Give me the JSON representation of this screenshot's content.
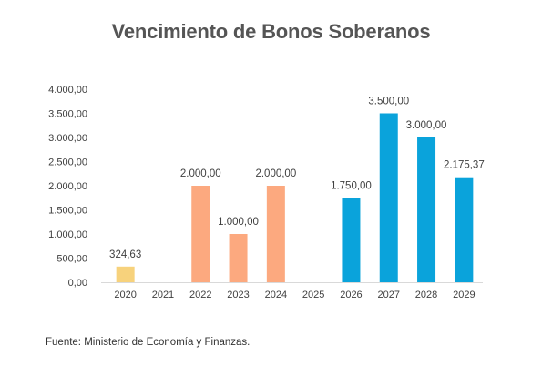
{
  "chart_data": {
    "type": "bar",
    "title": "Vencimiento de Bonos Soberanos",
    "categories": [
      "2020",
      "2021",
      "2022",
      "2023",
      "2024",
      "2025",
      "2026",
      "2027",
      "2028",
      "2029"
    ],
    "values": [
      324.63,
      0,
      2000,
      1000,
      2000,
      0,
      1750,
      3500,
      3000,
      2175.37
    ],
    "value_labels": [
      "324,63",
      "",
      "2.000,00",
      "1.000,00",
      "2.000,00",
      "",
      "1.750,00",
      "3.500,00",
      "3.000,00",
      "2.175,37"
    ],
    "bar_colors": [
      "#f7d27c",
      "#f7d27c",
      "#fca97f",
      "#fca97f",
      "#fca97f",
      "#0aa3db",
      "#0aa3db",
      "#0aa3db",
      "#0aa3db",
      "#0aa3db"
    ],
    "ylim": [
      0,
      4000
    ],
    "yticks": [
      0,
      500,
      1000,
      1500,
      2000,
      2500,
      3000,
      3500,
      4000
    ],
    "ytick_labels": [
      "0,00",
      "500,00",
      "1.000,00",
      "1.500,00",
      "2.000,00",
      "2.500,00",
      "3.000,00",
      "3.500,00",
      "4.000,00"
    ],
    "xlabel": "",
    "ylabel": "",
    "grid": false
  },
  "source_note": "Fuente: Ministerio de Economía y Finanzas.",
  "colors": {
    "title": "#555555",
    "axis": "#d9d9d9",
    "text": "#404040"
  }
}
